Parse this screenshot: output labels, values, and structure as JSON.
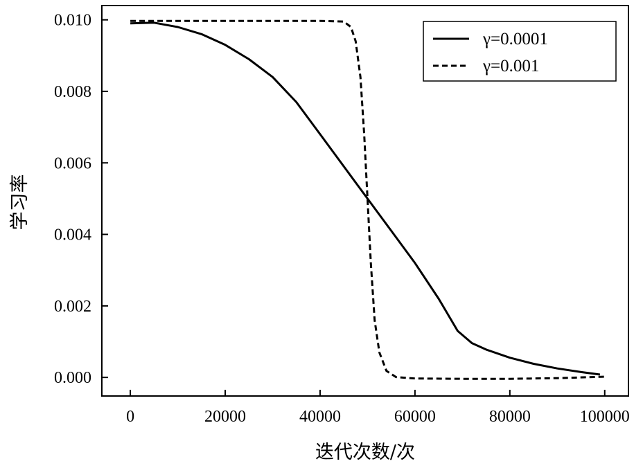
{
  "chart_data": {
    "type": "line",
    "title": "",
    "xlabel": "迭代次数/次",
    "ylabel": "学习率",
    "xlim": [
      -6000,
      105000
    ],
    "ylim": [
      -0.00052,
      0.0104
    ],
    "x_ticks": [
      0,
      20000,
      40000,
      60000,
      80000,
      100000
    ],
    "x_tick_labels": [
      "0",
      "20000",
      "40000",
      "60000",
      "80000",
      "100000"
    ],
    "y_ticks": [
      0.0,
      0.002,
      0.004,
      0.006,
      0.008,
      0.01
    ],
    "y_tick_labels": [
      "0.000",
      "0.002",
      "0.004",
      "0.006",
      "0.008",
      "0.010"
    ],
    "grid": false,
    "legend_position": "top-right",
    "series": [
      {
        "name": "γ=0.0001",
        "style": "solid",
        "color": "#000000",
        "points": [
          [
            0,
            0.0099
          ],
          [
            5000,
            0.00992
          ],
          [
            10000,
            0.0098
          ],
          [
            15000,
            0.0096
          ],
          [
            20000,
            0.0093
          ],
          [
            25000,
            0.0089
          ],
          [
            30000,
            0.0084
          ],
          [
            35000,
            0.0077
          ],
          [
            40000,
            0.0068
          ],
          [
            45000,
            0.0059
          ],
          [
            50000,
            0.005
          ],
          [
            55000,
            0.0041
          ],
          [
            60000,
            0.0032
          ],
          [
            65000,
            0.0022
          ],
          [
            69000,
            0.0013
          ],
          [
            72000,
            0.00096
          ],
          [
            75000,
            0.00078
          ],
          [
            80000,
            0.00055
          ],
          [
            85000,
            0.00038
          ],
          [
            90000,
            0.00025
          ],
          [
            95000,
            0.00015
          ],
          [
            99000,
            8e-05
          ]
        ]
      },
      {
        "name": "γ=0.001",
        "style": "dashed",
        "color": "#000000",
        "points": [
          [
            0,
            0.00997
          ],
          [
            10000,
            0.00997
          ],
          [
            20000,
            0.00997
          ],
          [
            30000,
            0.00997
          ],
          [
            40000,
            0.00997
          ],
          [
            45000,
            0.00995
          ],
          [
            46500,
            0.0098
          ],
          [
            47500,
            0.0094
          ],
          [
            48500,
            0.0084
          ],
          [
            49300,
            0.0068
          ],
          [
            50000,
            0.005
          ],
          [
            50700,
            0.0032
          ],
          [
            51500,
            0.0016
          ],
          [
            52500,
            0.0007
          ],
          [
            54000,
            0.00018
          ],
          [
            56000,
            1e-05
          ],
          [
            60000,
            -3e-05
          ],
          [
            70000,
            -4e-05
          ],
          [
            80000,
            -4e-05
          ],
          [
            90000,
            -2e-05
          ],
          [
            100000,
            2e-05
          ]
        ]
      }
    ]
  }
}
